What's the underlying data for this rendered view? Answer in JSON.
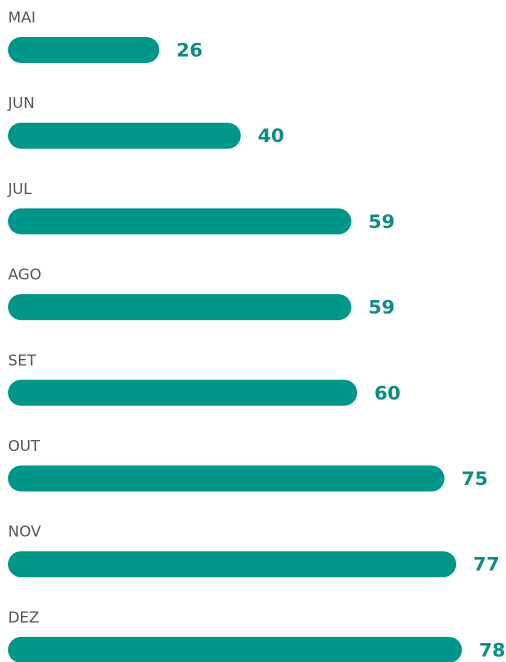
{
  "chart_data": {
    "type": "bar",
    "orientation": "horizontal",
    "categories": [
      "MAI",
      "JUN",
      "JUL",
      "AGO",
      "SET",
      "OUT",
      "NOV",
      "DEZ"
    ],
    "values": [
      26,
      40,
      59,
      59,
      60,
      75,
      77,
      78
    ],
    "color": "#00968a",
    "label_color": "#0d8c82"
  }
}
